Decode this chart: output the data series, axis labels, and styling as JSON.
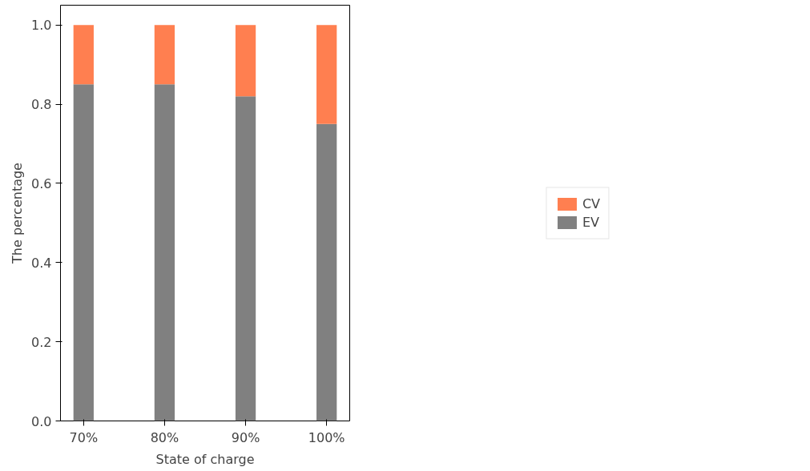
{
  "chart_data": {
    "type": "bar",
    "stacked": true,
    "xlabel": "State of charge",
    "ylabel": "The percentage",
    "categories": [
      "70%",
      "80%",
      "90%",
      "100%"
    ],
    "series": [
      {
        "name": "EV",
        "color": "#808080",
        "values": [
          0.85,
          0.85,
          0.82,
          0.75
        ]
      },
      {
        "name": "CV",
        "color": "#ff7f50",
        "values": [
          0.15,
          0.15,
          0.18,
          0.25
        ]
      }
    ],
    "ylim": [
      0,
      1.05
    ],
    "yticks": [
      {
        "value": 0,
        "label": "0.0"
      },
      0.2,
      0.4,
      0.6,
      0.8,
      {
        "value": 1,
        "label": "1.0"
      }
    ],
    "grid": false,
    "legend": "right"
  }
}
